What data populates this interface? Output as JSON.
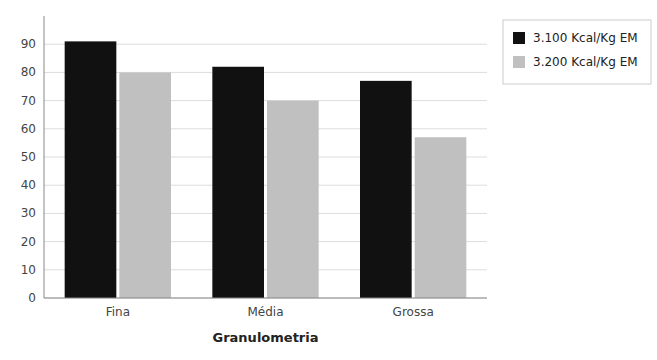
{
  "chart_data": {
    "type": "bar",
    "xlabel": "Granulometria",
    "categories": [
      "Fina",
      "Média",
      "Grossa"
    ],
    "series": [
      {
        "name": "3.100 Kcal/Kg EM",
        "color": "#111111",
        "values": [
          91,
          82,
          77
        ]
      },
      {
        "name": "3.200 Kcal/Kg EM",
        "color": "#c0c0c0",
        "values": [
          80,
          70,
          57
        ]
      }
    ],
    "ylim": [
      0,
      100
    ],
    "yticks": [
      0,
      10,
      20,
      30,
      40,
      50,
      60,
      70,
      80,
      90
    ],
    "grid": true,
    "legend": "right"
  }
}
